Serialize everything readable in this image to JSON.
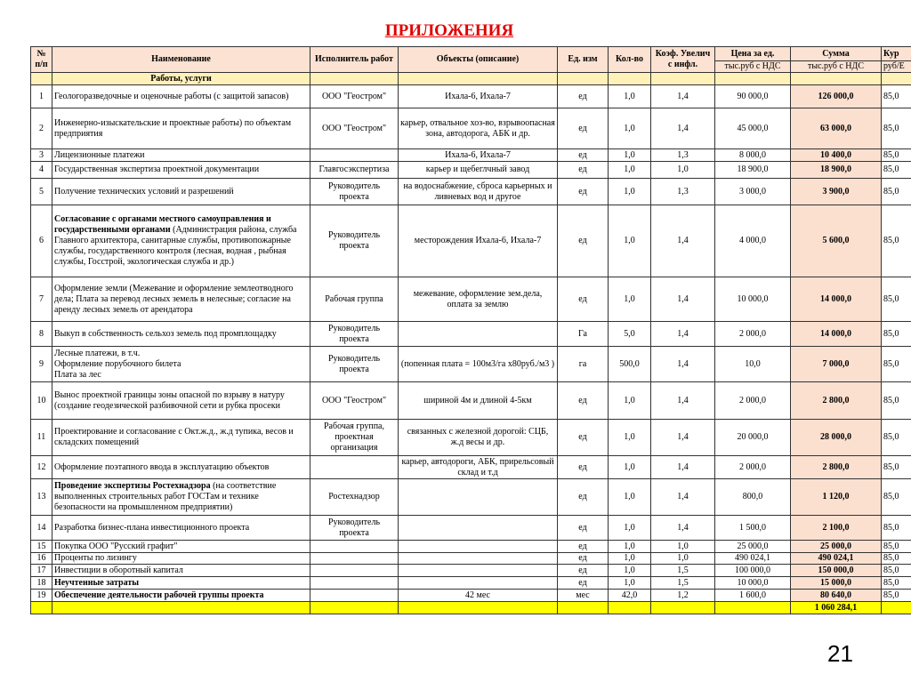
{
  "title": "ПРИЛОЖЕНИЯ",
  "page_number": "21",
  "colors": {
    "title": "#e00000",
    "header_bg": "#fbe2d2",
    "section_bg": "#fff1b8",
    "sum_bg": "#fbe0d0",
    "total_bg": "#ffff00"
  },
  "header": {
    "num": "№ п/п",
    "name": "Наименование",
    "executor": "Исполнитель работ",
    "objects": "Объекты (описание)",
    "unit": "Ед. изм",
    "qty": "Кол-во",
    "coef": "Коэф. Увелич с инфл.",
    "price": "Цена за ед.",
    "price_unit": "тыс.руб с НДС",
    "sum": "Сумма",
    "sum_unit": "тыс.руб с НДС",
    "rate": "Кур",
    "rate_unit": "руб/Е"
  },
  "section": "Работы, услуги",
  "rows": [
    {
      "num": "1",
      "name_bold": "",
      "name": "Геологоразведочные и оценочные работы (с защитой запасов)",
      "executor": "ООО \"Геостром\"",
      "objects": "Ихала-6, Ихала-7",
      "unit": "ед",
      "qty": "1,0",
      "coef": "1,4",
      "price": "90 000,0",
      "sum": "126 000,0",
      "rate": "85,0"
    },
    {
      "num": "2",
      "name_bold": "",
      "name": "Инженерно-изыскательские и проектные работы) по объектам предприятия",
      "executor": "ООО \"Геостром\"",
      "objects": "карьер, отвальное хоз-во, взрывоопасная зона, автодорога, АБК и др.",
      "unit": "ед",
      "qty": "1,0",
      "coef": "1,4",
      "price": "45 000,0",
      "sum": "63 000,0",
      "rate": "85,0"
    },
    {
      "num": "3",
      "name_bold": "",
      "name": "Лицензионные платежи",
      "executor": "",
      "objects": "Ихала-6, Ихала-7",
      "unit": "ед",
      "qty": "1,0",
      "coef": "1,3",
      "price": "8 000,0",
      "sum": "10 400,0",
      "rate": "85,0"
    },
    {
      "num": "4",
      "name_bold": "",
      "name": "Государственная экспертиза проектной документации",
      "executor": "Главгосэкспертиза",
      "objects": "карьер и щебеглчный завод",
      "unit": "ед",
      "qty": "1,0",
      "coef": "1,0",
      "price": "18 900,0",
      "sum": "18 900,0",
      "rate": "85,0"
    },
    {
      "num": "5",
      "name_bold": "",
      "name": "Получение технических условий и разрешений",
      "executor": "Руководитель проекта",
      "objects": "на водоснабжение, сброса карьерных и ливневых вод и другое",
      "unit": "ед",
      "qty": "1,0",
      "coef": "1,3",
      "price": "3 000,0",
      "sum": "3 900,0",
      "rate": "85,0"
    },
    {
      "num": "6",
      "name_bold": "Согласование с органами местного самоуправления и государственными органами",
      "name": " (Администрация района, служба Главного архитектора, санитарные службы, противопожарные службы, государственного контроля (лесная, водная , рыбная службы, Госстрой, экологическая служба и др.)",
      "executor": "Руководитель проекта",
      "objects": "месторождения Ихала-6, Ихала-7",
      "unit": "ед",
      "qty": "1,0",
      "coef": "1,4",
      "price": "4 000,0",
      "sum": "5 600,0",
      "rate": "85,0"
    },
    {
      "num": "7",
      "name_bold": "",
      "name": "Оформление земли (Межевание и оформление землеотводного дела; Плата за перевод лесных земель в нелесные; согласие на аренду лесных земель от арендатора",
      "executor": "Рабочая группа",
      "objects": "межевание, оформление зем.дела, оплата за землю",
      "unit": "ед",
      "qty": "1,0",
      "coef": "1,4",
      "price": "10 000,0",
      "sum": "14 000,0",
      "rate": "85,0"
    },
    {
      "num": "8",
      "name_bold": "",
      "name": "Выкуп в собственность сельхоз земель под промплощадку",
      "executor": "Руководитель проекта",
      "objects": "",
      "unit": "Га",
      "qty": "5,0",
      "coef": "1,4",
      "price": "2 000,0",
      "sum": "14 000,0",
      "rate": "85,0"
    },
    {
      "num": "9",
      "name_bold": "",
      "name": "Лесные платежи, в т.ч.\nОформление порубочного билета\nПлата за лес",
      "executor": "Руководитель проекта",
      "objects": "(попенная плата = 100м3/га х80руб./м3 )",
      "unit": "га",
      "qty": "500,0",
      "coef": "1,4",
      "price": "10,0",
      "sum": "7 000,0",
      "rate": "85,0"
    },
    {
      "num": "10",
      "name_bold": "",
      "name": "Вынос проектной границы зоны опасной по взрыву в натуру (создание геодезической разбивочной сети и рубка просеки",
      "executor": "ООО \"Геостром\"",
      "objects": "шириной 4м и длиной 4-5км",
      "unit": "ед",
      "qty": "1,0",
      "coef": "1,4",
      "price": "2 000,0",
      "sum": "2 800,0",
      "rate": "85,0"
    },
    {
      "num": "11",
      "name_bold": "",
      "name": "Проектирование и согласование с Окт.ж.д., ж.д тупика, весов и складских помещений",
      "executor": "Рабочая группа, проектная организация",
      "objects": "связанных с железной дорогой: СЦБ, ж.д весы и др.",
      "unit": "ед",
      "qty": "1,0",
      "coef": "1,4",
      "price": "20 000,0",
      "sum": "28 000,0",
      "rate": "85,0"
    },
    {
      "num": "12",
      "name_bold": "",
      "name": "Оформление поэтапного ввода в эксплуатацию объектов",
      "executor": "",
      "objects": "карьер, автодороги, АБК, прирельсовый склад и т.д",
      "unit": "ед",
      "qty": "1,0",
      "coef": "1,4",
      "price": "2 000,0",
      "sum": "2 800,0",
      "rate": "85,0"
    },
    {
      "num": "13",
      "name_bold": "Проведение экспертизы Ростехнадзора",
      "name": " (на соответствие выполненных строительных работ ГОСТам и технике безопасности на промышленном предприятии)",
      "executor": "Ростехнадзор",
      "objects": "",
      "unit": "ед",
      "qty": "1,0",
      "coef": "1,4",
      "price": "800,0",
      "sum": "1 120,0",
      "rate": "85,0"
    },
    {
      "num": "14",
      "name_bold": "",
      "name": "Разработка бизнес-плана инвестиционного проекта",
      "executor": "Руководитель проекта",
      "objects": "",
      "unit": "ед",
      "qty": "1,0",
      "coef": "1,4",
      "price": "1 500,0",
      "sum": "2 100,0",
      "rate": "85,0"
    },
    {
      "num": "15",
      "name_bold": "",
      "name": "Покупка ООО \"Русский графит\"",
      "executor": "",
      "objects": "",
      "unit": "ед",
      "qty": "1,0",
      "coef": "1,0",
      "price": "25 000,0",
      "sum": "25 000,0",
      "rate": "85,0"
    },
    {
      "num": "16",
      "name_bold": "",
      "name": "Проценты по лизингу",
      "executor": "",
      "objects": "",
      "unit": "ед",
      "qty": "1,0",
      "coef": "1,0",
      "price": "490 024,1",
      "sum": "490 024,1",
      "rate": "85,0"
    },
    {
      "num": "17",
      "name_bold": "",
      "name": "Инвестиции в оборотный капитал",
      "executor": "",
      "objects": "",
      "unit": "ед",
      "qty": "1,0",
      "coef": "1,5",
      "price": "100 000,0",
      "sum": "150 000,0",
      "rate": "85,0"
    },
    {
      "num": "18",
      "name_bold": "Неучтенные затраты",
      "name": "",
      "executor": "",
      "objects": "",
      "unit": "ед",
      "qty": "1,0",
      "coef": "1,5",
      "price": "10 000,0",
      "sum": "15 000,0",
      "rate": "85,0"
    },
    {
      "num": "19",
      "name_bold": "Обеспечение деятельности рабочей группы проекта",
      "name": "",
      "executor": "",
      "objects": "42 мес",
      "unit": "мес",
      "qty": "42,0",
      "coef": "1,2",
      "price": "1 600,0",
      "sum": "80 640,0",
      "rate": "85,0"
    }
  ],
  "total": "1 060 284,1"
}
